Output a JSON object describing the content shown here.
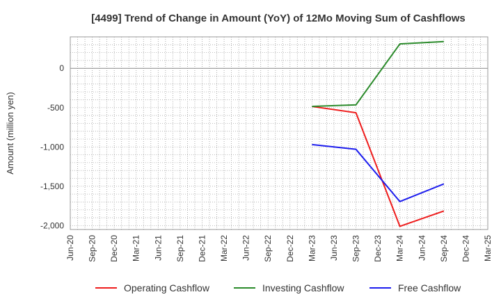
{
  "chart_data": {
    "type": "line",
    "title": "[4499]  Trend of Change in Amount (YoY) of 12Mo Moving Sum of Cashflows",
    "xlabel": "",
    "ylabel": "Amount (million yen)",
    "ylim": [
      -2050,
      400
    ],
    "yticks": [
      0,
      -500,
      -1000,
      -1500,
      -2000
    ],
    "ytick_labels": [
      "0",
      "-500",
      "-1,000",
      "-1,500",
      "-2,000"
    ],
    "categories": [
      "Jun-20",
      "Sep-20",
      "Dec-20",
      "Mar-21",
      "Jun-21",
      "Sep-21",
      "Dec-21",
      "Mar-22",
      "Jun-22",
      "Sep-22",
      "Dec-22",
      "Mar-23",
      "Jun-23",
      "Sep-23",
      "Dec-23",
      "Mar-24",
      "Jun-24",
      "Sep-24",
      "Dec-24",
      "Mar-25"
    ],
    "grid": true,
    "legend_position": "bottom",
    "series": [
      {
        "name": "Operating Cashflow",
        "color": "#ee1c1c",
        "points": [
          [
            "Mar-23",
            -485
          ],
          [
            "Sep-23",
            -565
          ],
          [
            "Mar-24",
            -2010
          ],
          [
            "Sep-24",
            -1815
          ]
        ]
      },
      {
        "name": "Investing Cashflow",
        "color": "#2a8a2a",
        "points": [
          [
            "Mar-23",
            -485
          ],
          [
            "Sep-23",
            -465
          ],
          [
            "Mar-24",
            310
          ],
          [
            "Sep-24",
            340
          ]
        ]
      },
      {
        "name": "Free Cashflow",
        "color": "#1c1cee",
        "points": [
          [
            "Mar-23",
            -970
          ],
          [
            "Sep-23",
            -1030
          ],
          [
            "Mar-24",
            -1695
          ],
          [
            "Sep-24",
            -1470
          ]
        ]
      }
    ]
  }
}
